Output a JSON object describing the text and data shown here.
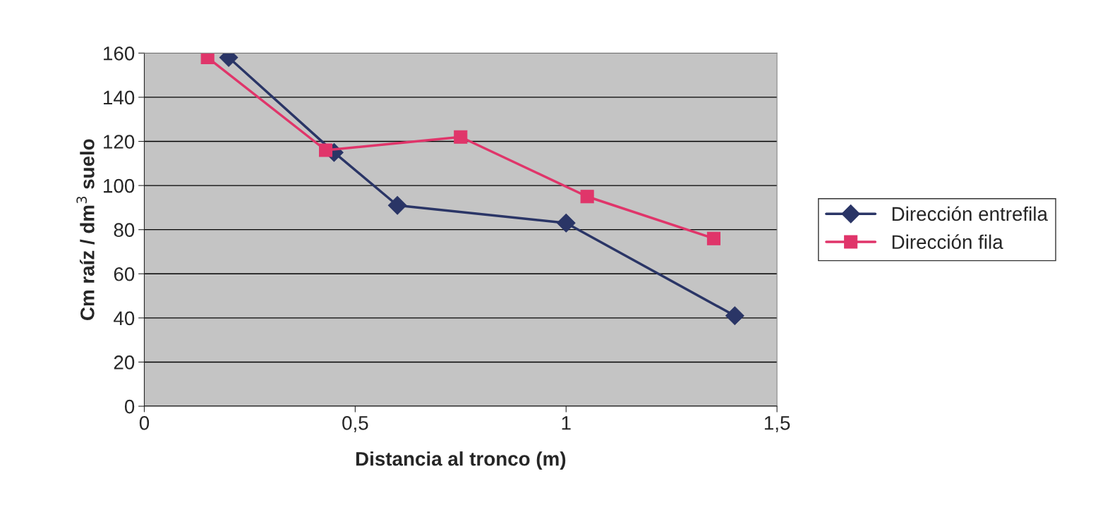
{
  "chart_data": {
    "type": "line",
    "xlabel": "Distancia al tronco (m)",
    "ylabel": "Cm raíz / dm$^{3}$ suelo",
    "series": [
      {
        "name": "Dirección entrefila",
        "color": "#2a3566",
        "marker": "diamond",
        "x": [
          0.2,
          0.45,
          0.6,
          1.0,
          1.4
        ],
        "values": [
          158,
          115,
          91,
          83,
          41
        ]
      },
      {
        "name": "Dirección fila",
        "color": "#e0356a",
        "marker": "square",
        "x": [
          0.15,
          0.43,
          0.75,
          1.05,
          1.35
        ],
        "values": [
          158,
          116,
          122,
          95,
          76
        ]
      }
    ],
    "xlim": [
      0,
      1.5
    ],
    "xticks": [
      0,
      {
        "value": 0.5,
        "label": "0,5"
      },
      1,
      {
        "value": 1.5,
        "label": "1,5"
      }
    ],
    "ylim": [
      0,
      160
    ],
    "yticks": [
      0,
      20,
      40,
      60,
      80,
      100,
      120,
      140,
      160
    ],
    "grid": "y",
    "legend": "right"
  }
}
